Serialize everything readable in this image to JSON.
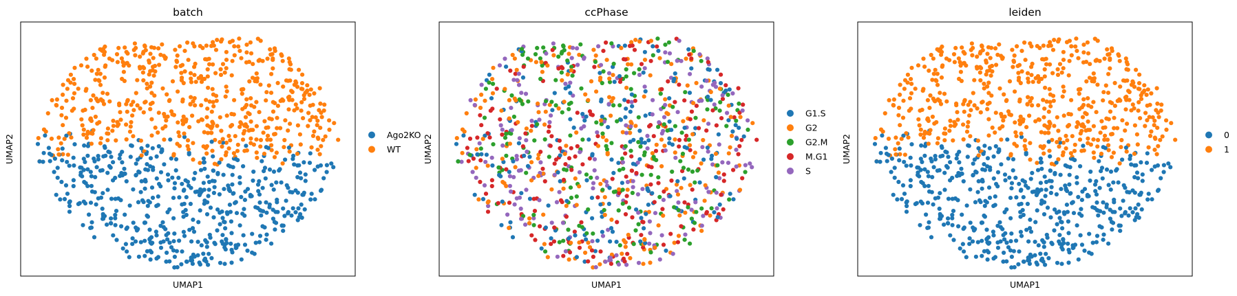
{
  "chart_data": [
    {
      "type": "scatter",
      "title": "batch",
      "xlabel": "UMAP1",
      "ylabel": "UMAP2",
      "xticks": false,
      "yticks": false,
      "grid": false,
      "legend_position": "right",
      "legend": [
        {
          "label": "Ago2KO",
          "color": "#1f77b4"
        },
        {
          "label": "WT",
          "color": "#ff7f0e"
        }
      ],
      "pattern": "split",
      "n_points": 1100,
      "seed": 11
    },
    {
      "type": "scatter",
      "title": "ccPhase",
      "xlabel": "UMAP1",
      "ylabel": "UMAP2",
      "xticks": false,
      "yticks": false,
      "grid": false,
      "legend_position": "right",
      "legend": [
        {
          "label": "G1.S",
          "color": "#1f77b4"
        },
        {
          "label": "G2",
          "color": "#ff7f0e"
        },
        {
          "label": "G2.M",
          "color": "#2ca02c"
        },
        {
          "label": "M.G1",
          "color": "#d62728"
        },
        {
          "label": "S",
          "color": "#9467bd"
        }
      ],
      "pattern": "mixed",
      "n_points": 1100,
      "seed": 11
    },
    {
      "type": "scatter",
      "title": "leiden",
      "xlabel": "UMAP1",
      "ylabel": "UMAP2",
      "xticks": false,
      "yticks": false,
      "grid": false,
      "legend_position": "right",
      "legend": [
        {
          "label": "0",
          "color": "#1f77b4"
        },
        {
          "label": "1",
          "color": "#ff7f0e"
        }
      ],
      "pattern": "split",
      "n_points": 1100,
      "seed": 11
    }
  ]
}
